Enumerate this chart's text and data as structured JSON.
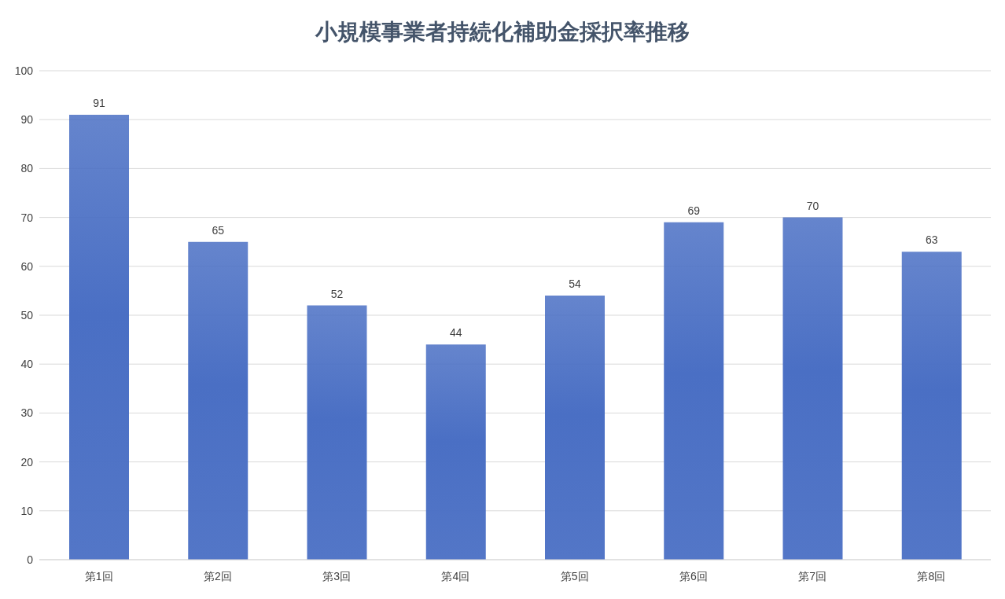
{
  "chart_data": {
    "type": "bar",
    "title": "小規模事業者持続化補助金採択率推移",
    "categories": [
      "第1回",
      "第2回",
      "第3回",
      "第4回",
      "第5回",
      "第6回",
      "第7回",
      "第8回"
    ],
    "values": [
      91,
      65,
      52,
      44,
      54,
      69,
      70,
      63
    ],
    "color": "#4a6fc4",
    "ylim": [
      0,
      100
    ],
    "yticks": [
      0,
      10,
      20,
      30,
      40,
      50,
      60,
      70,
      80,
      90,
      100
    ],
    "grid": "y",
    "data_labels": true
  }
}
